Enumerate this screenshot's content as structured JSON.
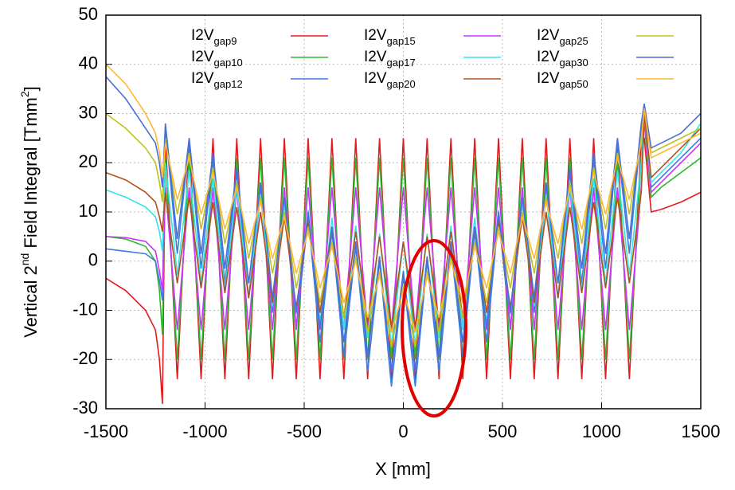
{
  "chart_data": {
    "type": "line",
    "xlabel": "X [mm]",
    "ylabel": [
      "Vertical 2",
      "nd",
      " Field Integral [Tmm",
      "2",
      "]"
    ],
    "xlim": [
      -1500,
      1500
    ],
    "ylim": [
      -30,
      50
    ],
    "xticks": [
      -1500,
      -1000,
      -500,
      0,
      500,
      1000,
      1500
    ],
    "yticks": [
      -30,
      -20,
      -10,
      0,
      10,
      20,
      30,
      40,
      50
    ],
    "grid": true,
    "x": [
      -1500,
      -1400,
      -1300,
      -1250,
      -1230,
      -1215,
      -1200,
      -1140,
      -1080,
      -1020,
      -960,
      -900,
      -840,
      -780,
      -720,
      -660,
      -600,
      -540,
      -480,
      -420,
      -360,
      -300,
      -240,
      -180,
      -120,
      -60,
      0,
      60,
      120,
      180,
      240,
      300,
      360,
      420,
      480,
      540,
      600,
      660,
      720,
      780,
      840,
      900,
      960,
      1020,
      1080,
      1140,
      1200,
      1215,
      1250,
      1300,
      1400,
      1500
    ],
    "series": [
      {
        "name": "I2Vgap9",
        "color": "#e41a1c",
        "values": [
          -3.5,
          -6,
          -10,
          -14,
          -20,
          -29,
          25,
          -24,
          25,
          -24,
          25,
          -24,
          25,
          -24,
          25,
          -24,
          25,
          -24,
          25,
          -24,
          25,
          -24,
          25,
          -24,
          25,
          -24,
          25,
          -24,
          25,
          -24,
          25,
          -24,
          25,
          -24,
          25,
          -24,
          25,
          -24,
          25,
          -24,
          25,
          -24,
          25,
          -24,
          25,
          -24,
          25,
          25,
          10,
          10.5,
          12,
          14
        ]
      },
      {
        "name": "I2Vgap10",
        "color": "#2db82d",
        "values": [
          5,
          4.5,
          3,
          0,
          -6,
          -15,
          21,
          -20,
          21,
          -20,
          21,
          -20,
          21,
          -20,
          21,
          -20,
          21,
          -20,
          21,
          -20,
          21,
          -20,
          21,
          -20,
          21,
          -20,
          21,
          -20,
          21,
          -20,
          21,
          -20,
          21,
          -20,
          21,
          -20,
          21,
          -20,
          21,
          -20,
          21,
          -20,
          21,
          -20,
          21,
          -20,
          21,
          28,
          13,
          15,
          18,
          21
        ]
      },
      {
        "name": "I2Vgap12",
        "color": "#3b7de0",
        "values": [
          2.5,
          2,
          1.5,
          0,
          -4,
          -8,
          27,
          1.5,
          24,
          -1.5,
          21,
          -4.5,
          18,
          -7.5,
          15,
          -10.5,
          12,
          -13.5,
          9,
          -16.5,
          6,
          -19.5,
          3,
          -22.5,
          0,
          -25.5,
          -3,
          -25.5,
          0,
          -22.5,
          3,
          -19.5,
          6,
          -16.5,
          9,
          -13.5,
          12,
          -10.5,
          15,
          -7.5,
          18,
          -4.5,
          21,
          -1.5,
          24,
          1.5,
          27,
          30,
          15,
          17,
          21,
          25
        ]
      },
      {
        "name": "I2Vgap15",
        "color": "#cc33ff",
        "values": [
          5,
          4.8,
          4,
          2,
          -2,
          -6,
          15,
          -14,
          15,
          -14,
          15,
          -14,
          15,
          -14,
          15,
          -14,
          15,
          -14,
          15,
          -14,
          15,
          -14,
          15,
          -14,
          15,
          -14,
          15,
          -14,
          15,
          -14,
          15,
          -14,
          15,
          -14,
          15,
          -14,
          15,
          -14,
          15,
          -14,
          15,
          -14,
          15,
          -14,
          15,
          -14,
          15,
          29,
          14,
          16,
          20,
          24
        ]
      },
      {
        "name": "I2Vgap17",
        "color": "#33e6e6",
        "values": [
          14.5,
          13,
          11,
          9,
          6,
          2,
          20,
          -2.8,
          18.4,
          -4.4,
          16.8,
          -6,
          15.2,
          -7.6,
          13.6,
          -9.2,
          12,
          -10.8,
          10.4,
          -12.4,
          8.8,
          -14,
          7.2,
          -15.6,
          5.6,
          -17.2,
          4,
          -17.2,
          5.6,
          -15.6,
          7.2,
          -14,
          8.8,
          -12.4,
          10.4,
          -10.8,
          12,
          -9.2,
          13.6,
          -7.6,
          15.2,
          -6,
          16.8,
          -4.4,
          18.4,
          -2.8,
          20,
          30,
          16,
          18,
          22,
          28
        ]
      },
      {
        "name": "I2Vgap20",
        "color": "#b5501c",
        "values": [
          18,
          16.5,
          14,
          12,
          9,
          6,
          14,
          -4.5,
          13,
          -5.5,
          12,
          -6.5,
          11,
          -7.5,
          10,
          -8.5,
          9,
          -9.5,
          8,
          -10.5,
          7,
          -11.5,
          6,
          -12.5,
          5,
          -13.5,
          4,
          -13.5,
          5,
          -12.5,
          6,
          -11.5,
          7,
          -10.5,
          8,
          -9.5,
          9,
          -8.5,
          10,
          -7.5,
          11,
          -6.5,
          12,
          -5.5,
          13,
          -4.5,
          14,
          30,
          17,
          19,
          23,
          27
        ]
      },
      {
        "name": "I2Vgap25",
        "color": "#c2c21a",
        "values": [
          30,
          27,
          23,
          20,
          16,
          12,
          25,
          9.5,
          22,
          6.5,
          19,
          3.5,
          16,
          0.5,
          13,
          -2.5,
          10,
          -5.5,
          7,
          -8.5,
          4,
          -11.5,
          1,
          -14.5,
          -2,
          -17.5,
          -5,
          -17.5,
          -2,
          -14.5,
          1,
          -11.5,
          4,
          -8.5,
          7,
          -5.5,
          10,
          -2.5,
          13,
          0.5,
          16,
          3.5,
          19,
          6.5,
          22,
          9.5,
          25,
          31,
          22,
          23,
          25,
          27
        ]
      },
      {
        "name": "I2Vgap30",
        "color": "#4a6fd8",
        "values": [
          37.5,
          33,
          27,
          24,
          20,
          15,
          28,
          4.5,
          25,
          1.5,
          22,
          -1.5,
          19,
          -4.5,
          16,
          -7.5,
          13,
          -10.5,
          10,
          -13.5,
          7,
          -16.5,
          4,
          -19.5,
          1,
          -22.5,
          -2,
          -22.5,
          1,
          -19.5,
          4,
          -16.5,
          7,
          -13.5,
          10,
          -10.5,
          13,
          -7.5,
          16,
          -4.5,
          19,
          -1.5,
          22,
          1.5,
          25,
          4.5,
          28,
          32,
          23,
          24,
          26,
          30
        ]
      },
      {
        "name": "I2Vgap50",
        "color": "#ffb833",
        "values": [
          40,
          36,
          30,
          26,
          22,
          17,
          24,
          12.5,
          21,
          9.5,
          18,
          6.5,
          15,
          3.5,
          12,
          0.5,
          9,
          -2.5,
          6,
          -5.5,
          3,
          -8.5,
          0,
          -11.5,
          -3,
          -14.5,
          -6,
          -14.5,
          -3,
          -11.5,
          0,
          -8.5,
          3,
          -5.5,
          6,
          -2.5,
          9,
          0.5,
          12,
          3.5,
          15,
          6.5,
          18,
          9.5,
          21,
          12.5,
          24,
          31,
          21,
          22,
          24,
          26
        ]
      }
    ]
  }
}
